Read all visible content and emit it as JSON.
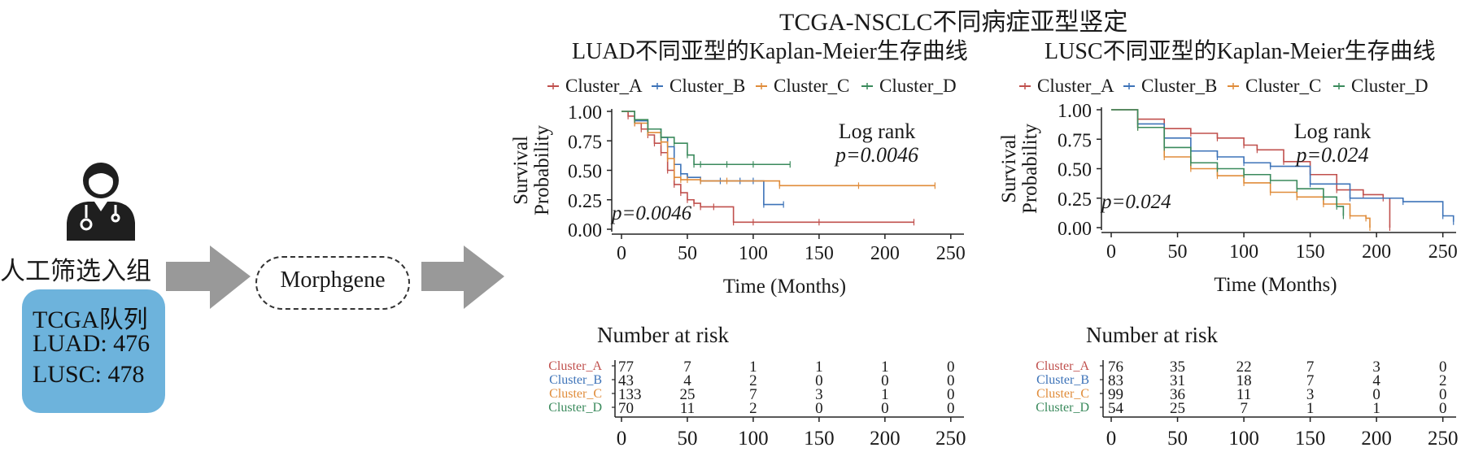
{
  "figure": {
    "title": "TCGA-NSCLC不同病症亚型竖定",
    "left_panel": {
      "icon": "doctor-icon",
      "manual_label": "人工筛选入组",
      "cohort_lines": [
        "TCGA队列",
        "LUAD: 476",
        "LUSC: 478"
      ],
      "method_label": "Morphgene",
      "arrow_color": "#999999",
      "box_color": "#6db3dc"
    }
  },
  "chart_data": [
    {
      "type": "line",
      "subtype": "kaplan-meier",
      "title": "LUAD不同亚型的Kaplan-Meier生存曲线",
      "xlabel": "Time (Months)",
      "ylabel": "Survival Probability",
      "xlim": [
        0,
        260
      ],
      "ylim": [
        0,
        1
      ],
      "xticks": [
        0,
        50,
        100,
        150,
        200,
        250
      ],
      "yticks": [
        "0.00",
        "0.25",
        "0.50",
        "0.75",
        "1.00"
      ],
      "legend": "top",
      "annotations": {
        "test_label": "Log rank",
        "p_label": "p=0.0046",
        "p_inside": "p=0.0046"
      },
      "series": [
        {
          "name": "Cluster_A",
          "color": "#c0504d",
          "x": [
            0,
            5,
            10,
            15,
            20,
            25,
            30,
            35,
            40,
            45,
            50,
            55,
            60,
            70,
            85,
            100,
            150,
            222
          ],
          "y": [
            1.0,
            0.96,
            0.9,
            0.85,
            0.8,
            0.73,
            0.65,
            0.5,
            0.38,
            0.31,
            0.25,
            0.22,
            0.19,
            0.19,
            0.06,
            0.06,
            0.06,
            0.06
          ]
        },
        {
          "name": "Cluster_B",
          "color": "#3d73b8",
          "x": [
            0,
            10,
            20,
            30,
            35,
            40,
            45,
            50,
            60,
            75,
            90,
            100,
            108,
            123
          ],
          "y": [
            1.0,
            0.92,
            0.85,
            0.78,
            0.7,
            0.55,
            0.47,
            0.44,
            0.41,
            0.41,
            0.41,
            0.41,
            0.21,
            0.21
          ]
        },
        {
          "name": "Cluster_C",
          "color": "#e08c3a",
          "x": [
            0,
            10,
            20,
            30,
            35,
            40,
            45,
            50,
            60,
            80,
            120,
            180,
            238
          ],
          "y": [
            1.0,
            0.9,
            0.82,
            0.74,
            0.6,
            0.44,
            0.42,
            0.42,
            0.41,
            0.41,
            0.37,
            0.37,
            0.37
          ]
        },
        {
          "name": "Cluster_D",
          "color": "#3a8a5c",
          "x": [
            0,
            10,
            20,
            30,
            40,
            50,
            55,
            60,
            80,
            100,
            128
          ],
          "y": [
            1.0,
            0.93,
            0.85,
            0.78,
            0.73,
            0.63,
            0.55,
            0.55,
            0.55,
            0.55,
            0.55
          ]
        }
      ],
      "risk_table": {
        "title": "Number at risk",
        "times": [
          0,
          50,
          100,
          150,
          200,
          250
        ],
        "rows": [
          {
            "name": "Cluster_A",
            "color": "#c0504d",
            "values": [
              "77",
              "7",
              "1",
              "1",
              "1",
              "0"
            ]
          },
          {
            "name": "Cluster_B",
            "color": "#3d73b8",
            "values": [
              "43",
              "4",
              "2",
              "0",
              "0",
              "0"
            ]
          },
          {
            "name": "Cluster_C",
            "color": "#e08c3a",
            "values": [
              "133",
              "25",
              "7",
              "3",
              "1",
              "0"
            ]
          },
          {
            "name": "Cluster_D",
            "color": "#3a8a5c",
            "values": [
              "70",
              "11",
              "2",
              "0",
              "0",
              "0"
            ]
          }
        ]
      }
    },
    {
      "type": "line",
      "subtype": "kaplan-meier",
      "title": "LUSC不同亚型的Kaplan-Meier生存曲线",
      "xlabel": "Time (Months)",
      "ylabel": "Survival Probability",
      "xlim": [
        0,
        260
      ],
      "ylim": [
        0,
        1
      ],
      "xticks": [
        0,
        50,
        100,
        150,
        200,
        250
      ],
      "yticks": [
        "0.00",
        "0.25",
        "0.50",
        "0.75",
        "1.00"
      ],
      "legend": "top",
      "annotations": {
        "test_label": "Log rank",
        "p_label": "p=0.024",
        "p_inside": "p=0.024"
      },
      "series": [
        {
          "name": "Cluster_A",
          "color": "#c0504d",
          "x": [
            0,
            20,
            40,
            60,
            80,
            100,
            110,
            130,
            150,
            170,
            190,
            205,
            210
          ],
          "y": [
            1.0,
            0.92,
            0.84,
            0.8,
            0.76,
            0.7,
            0.66,
            0.56,
            0.45,
            0.32,
            0.28,
            0.25,
            0.0
          ]
        },
        {
          "name": "Cluster_B",
          "color": "#3d73b8",
          "x": [
            0,
            20,
            40,
            60,
            80,
            100,
            120,
            150,
            180,
            220,
            250,
            258
          ],
          "y": [
            1.0,
            0.88,
            0.76,
            0.65,
            0.6,
            0.55,
            0.52,
            0.37,
            0.25,
            0.22,
            0.1,
            0.05
          ]
        },
        {
          "name": "Cluster_C",
          "color": "#e08c3a",
          "x": [
            0,
            20,
            40,
            60,
            80,
            100,
            120,
            140,
            160,
            180,
            192,
            195
          ],
          "y": [
            1.0,
            0.85,
            0.6,
            0.5,
            0.44,
            0.38,
            0.3,
            0.26,
            0.2,
            0.1,
            0.08,
            0.0
          ]
        },
        {
          "name": "Cluster_D",
          "color": "#3a8a5c",
          "x": [
            0,
            20,
            40,
            60,
            80,
            100,
            120,
            140,
            160,
            170,
            175
          ],
          "y": [
            1.0,
            0.85,
            0.68,
            0.55,
            0.5,
            0.45,
            0.4,
            0.33,
            0.26,
            0.18,
            0.1
          ]
        }
      ],
      "risk_table": {
        "title": "Number at risk",
        "times": [
          0,
          50,
          100,
          150,
          200,
          250
        ],
        "rows": [
          {
            "name": "Cluster_A",
            "color": "#c0504d",
            "values": [
              "76",
              "35",
              "22",
              "7",
              "3",
              "0"
            ]
          },
          {
            "name": "Cluster_B",
            "color": "#3d73b8",
            "values": [
              "83",
              "31",
              "18",
              "7",
              "4",
              "2"
            ]
          },
          {
            "name": "Cluster_C",
            "color": "#e08c3a",
            "values": [
              "99",
              "36",
              "11",
              "3",
              "0",
              "0"
            ]
          },
          {
            "name": "Cluster_D",
            "color": "#3a8a5c",
            "values": [
              "54",
              "25",
              "7",
              "1",
              "1",
              "0"
            ]
          }
        ]
      }
    }
  ]
}
